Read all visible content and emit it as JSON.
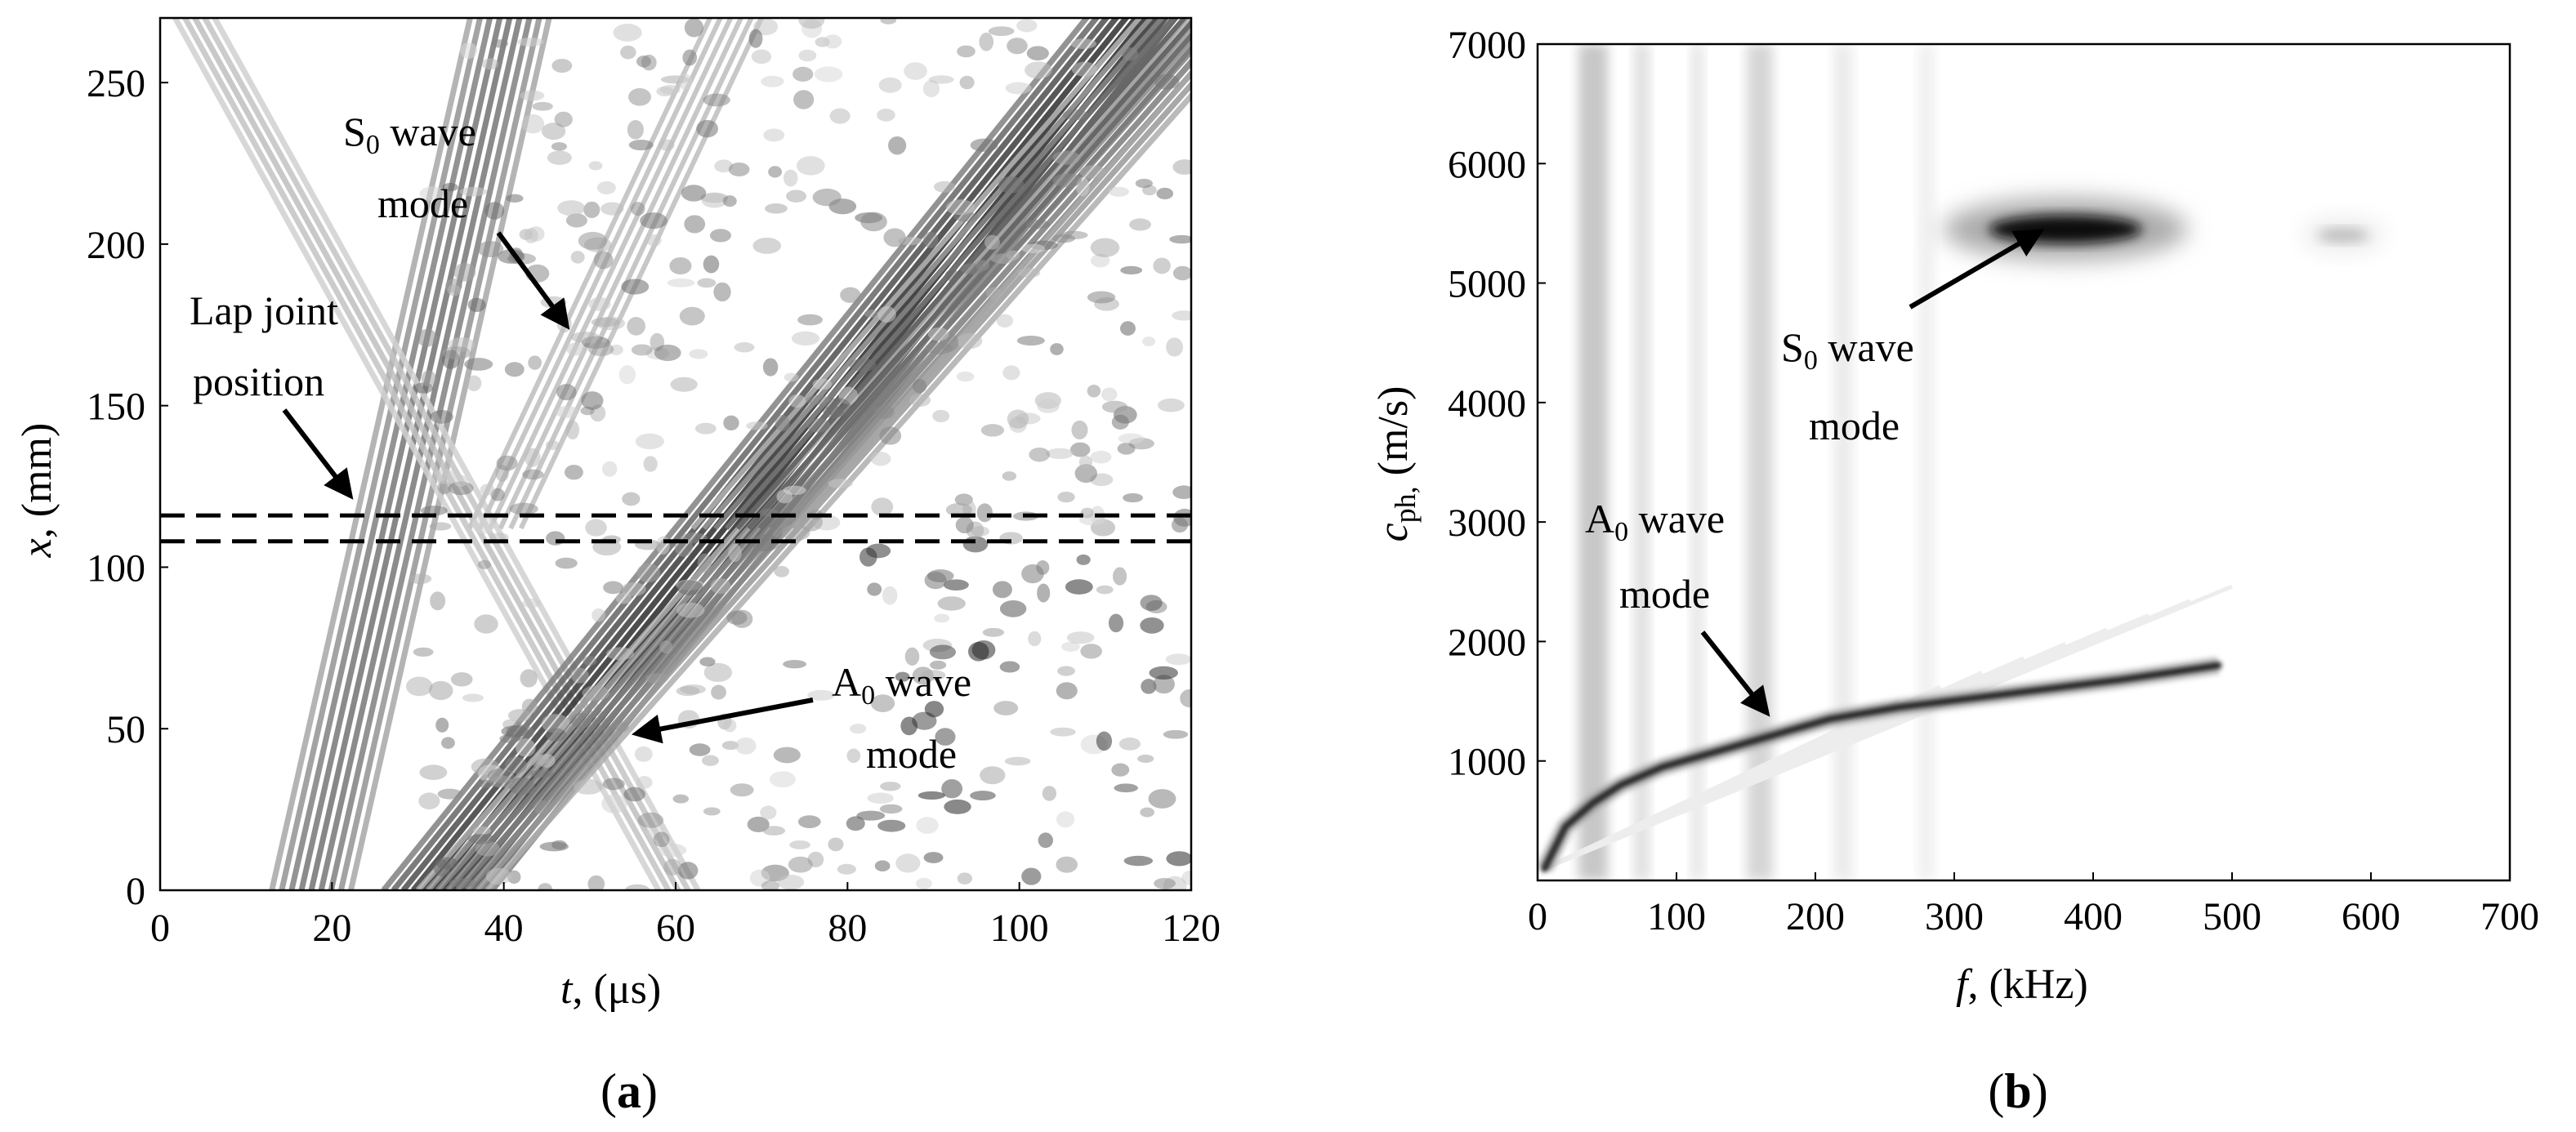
{
  "chart_data": [
    {
      "type": "heatmap",
      "panel_label": "(a)",
      "xlabel": "t, (μs)",
      "ylabel": "x, (mm)",
      "xlim": [
        0,
        120
      ],
      "ylim": [
        0,
        270
      ],
      "xticks": [
        0,
        20,
        40,
        60,
        80,
        100,
        120
      ],
      "yticks": [
        0,
        50,
        100,
        150,
        200,
        250
      ],
      "colormap": "grayscale",
      "lap_joint_lines_x_mm": [
        116,
        108
      ],
      "wave_fronts": [
        {
          "name": "S0 wave mode",
          "t_at_x0": 13,
          "speed_mm_per_us": 11.7,
          "bands": 9,
          "darkness": 0.55
        },
        {
          "name": "S0 reflection",
          "t_at_x0": 58,
          "speed_mm_per_us": -4.8,
          "bands": 5,
          "darkness": 0.25
        },
        {
          "name": "A0 wave mode",
          "t_at_x0": 26,
          "speed_mm_per_us": 3.3,
          "bands": 12,
          "darkness": 0.85
        },
        {
          "name": "A0 transmitted",
          "t_at_x0": 30,
          "speed_mm_per_us": 3.0,
          "bands": 8,
          "darkness": 0.5
        }
      ],
      "annotations": [
        {
          "text_lines": [
            "S",
            "0",
            " wave",
            "mode"
          ],
          "sub": "0",
          "arrow_to": [
            48,
            185
          ]
        },
        {
          "text_lines": [
            "Lap joint",
            "position"
          ],
          "arrow_to": [
            24,
            122
          ]
        },
        {
          "text_lines": [
            "A",
            "0",
            " wave",
            "mode"
          ],
          "sub": "0",
          "arrow_to": [
            54,
            50
          ]
        }
      ]
    },
    {
      "type": "heatmap",
      "panel_label": "(b)",
      "xlabel": "f, (kHz)",
      "ylabel_main": "c",
      "ylabel_sub": "ph,",
      "ylabel_unit": " (m/s)",
      "xlim": [
        0,
        700
      ],
      "ylim": [
        0,
        7000
      ],
      "xticks": [
        0,
        100,
        200,
        300,
        400,
        500,
        600,
        700
      ],
      "yticks": [
        1000,
        2000,
        3000,
        4000,
        5000,
        6000,
        7000
      ],
      "colormap": "grayscale",
      "ridges": [
        {
          "name": "A0 dispersion curve",
          "points": [
            [
              5,
              100
            ],
            [
              20,
              450
            ],
            [
              40,
              650
            ],
            [
              60,
              800
            ],
            [
              90,
              950
            ],
            [
              120,
              1050
            ],
            [
              150,
              1150
            ],
            [
              180,
              1250
            ],
            [
              210,
              1350
            ],
            [
              260,
              1450
            ],
            [
              330,
              1550
            ],
            [
              420,
              1680
            ],
            [
              490,
              1800
            ]
          ]
        },
        {
          "name": "S0 energy blob",
          "center": [
            380,
            5450
          ],
          "spread_f": 55,
          "spread_c": 120,
          "darkness": 0.95
        },
        {
          "name": "S0 weak tail",
          "center": [
            580,
            5400
          ],
          "spread_f": 18,
          "spread_c": 60,
          "darkness": 0.25
        }
      ],
      "annotations": [
        {
          "text_lines": [
            "S",
            "0",
            " wave",
            "mode"
          ],
          "sub": "0",
          "arrow_to": [
            365,
            5520
          ]
        },
        {
          "text_lines": [
            "A",
            "0",
            " wave",
            "mode"
          ],
          "sub": "0",
          "arrow_to": [
            170,
            1180
          ]
        }
      ]
    }
  ],
  "labels": {
    "a_xlabel_var": "t",
    "a_xlabel_unit": ", (μs)",
    "a_ylabel_var": "x",
    "a_ylabel_unit": ", (mm)",
    "a_s0_main": "S",
    "a_s0_sub": "0",
    "a_s0_rest": " wave",
    "a_s0_line2": "mode",
    "a_lap_line1": "Lap joint",
    "a_lap_line2": "position",
    "a_a0_main": "A",
    "a_a0_sub": "0",
    "a_a0_rest": " wave",
    "a_a0_line2": "mode",
    "a_panel_open": "(",
    "a_panel_letter": "a",
    "a_panel_close": ")",
    "b_xlabel_var": "f",
    "b_xlabel_unit": ", (kHz)",
    "b_ylabel_var": "c",
    "b_ylabel_sub": "ph,",
    "b_ylabel_unit": " (m/s)",
    "b_s0_main": "S",
    "b_s0_sub": "0",
    "b_s0_rest": " wave",
    "b_s0_line2": "mode",
    "b_a0_main": "A",
    "b_a0_sub": "0",
    "b_a0_rest": " wave",
    "b_a0_line2": "mode",
    "b_panel_open": "(",
    "b_panel_letter": "b",
    "b_panel_close": ")"
  }
}
